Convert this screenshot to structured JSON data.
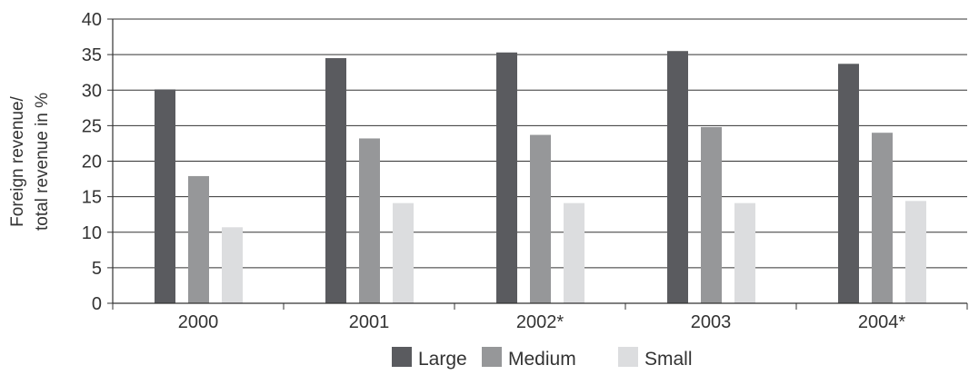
{
  "chart_data": {
    "type": "bar",
    "title": "",
    "ylabel": [
      "Foreign revenue/",
      "total revenue in %"
    ],
    "xlabel": "",
    "categories": [
      "2000",
      "2001",
      "2002*",
      "2003",
      "2004*"
    ],
    "ylim": [
      0,
      40
    ],
    "yticks": [
      0,
      5,
      10,
      15,
      20,
      25,
      30,
      35,
      40
    ],
    "grid": true,
    "legend_position": "bottom",
    "series": [
      {
        "name": "Large",
        "color": "#5a5b5f",
        "values": [
          30.1,
          34.5,
          35.3,
          35.5,
          33.7
        ]
      },
      {
        "name": "Medium",
        "color": "#969799",
        "values": [
          17.9,
          23.2,
          23.7,
          24.8,
          24.0
        ]
      },
      {
        "name": "Small",
        "color": "#dcdddf",
        "values": [
          10.7,
          14.1,
          14.1,
          14.1,
          14.4
        ]
      }
    ]
  }
}
